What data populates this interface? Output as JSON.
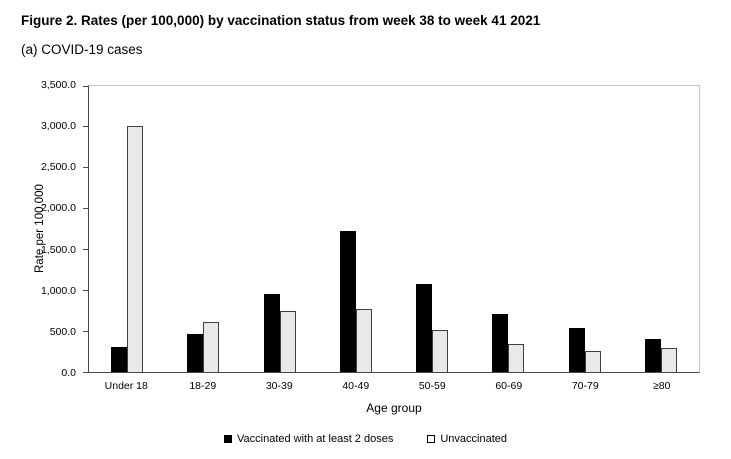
{
  "title": "Figure 2. Rates (per 100,000) by vaccination status from week 38 to week 41 2021",
  "subtitle": "(a) COVID-19 cases",
  "chart_data": {
    "type": "bar",
    "categories": [
      "Under 18",
      "18-29",
      "30-39",
      "40-49",
      "50-59",
      "60-69",
      "70-79",
      "≥80"
    ],
    "series": [
      {
        "name": "Vaccinated with at least 2 doses",
        "color": "#000000",
        "values": [
          310,
          460,
          950,
          1730,
          1080,
          710,
          535,
          400
        ]
      },
      {
        "name": "Unvaccinated",
        "color": "#e9e9e9",
        "values": [
          3010,
          610,
          750,
          770,
          520,
          340,
          260,
          300
        ]
      }
    ],
    "xlabel": "Age group",
    "ylabel": "Rate per 100,000",
    "ylim": [
      0,
      3500
    ],
    "ytick_labels": [
      "0.0",
      "500.0",
      "1,000.0",
      "1,500.0",
      "2,000.0",
      "2,500.0",
      "3,000.0",
      "3,500.0"
    ],
    "grid": false,
    "legend_position": "bottom"
  }
}
